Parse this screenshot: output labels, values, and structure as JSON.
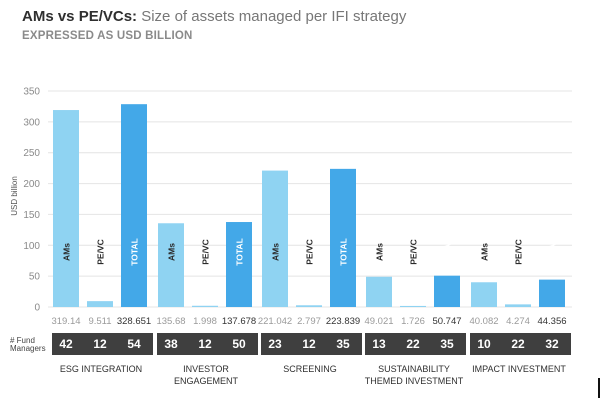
{
  "header": {
    "title_bold": "AMs vs PE/VCs:",
    "title_rest": "Size of assets managed per IFI strategy",
    "subtitle": "EXPRESSED AS USD BILLION"
  },
  "colors": {
    "ams": "#8fd3f2",
    "pevc": "#8fd3f2",
    "total": "#43a8e8",
    "fund_box": "#3f3f3f",
    "grid": "#e4e4e4",
    "axis_text": "#8a8a8a",
    "value_text": "#9a9a9a"
  },
  "chart_data": {
    "type": "bar",
    "title": "AMs vs PE/VCs: Size of assets managed per IFI strategy",
    "subtitle": "EXPRESSED AS USD BILLION",
    "ylabel": "USD billion",
    "xlabel": "",
    "ylim": [
      0,
      350
    ],
    "yticks": [
      0,
      50,
      100,
      150,
      200,
      250,
      300,
      350
    ],
    "grid": true,
    "series_labels": [
      "AMs",
      "PE/VC",
      "TOTAL"
    ],
    "fund_managers_label": "# Fund Managers",
    "categories": [
      {
        "name": "ESG INTEGRATION",
        "values": [
          319.14,
          9.511,
          328.651
        ],
        "value_labels": [
          "319.14",
          "9.511",
          "328.651"
        ],
        "fund_managers": [
          "42",
          "12",
          "54"
        ]
      },
      {
        "name": "INVESTOR ENGAGEMENT",
        "values": [
          135.68,
          1.998,
          137.678
        ],
        "value_labels": [
          "135.68",
          "1.998",
          "137.678"
        ],
        "fund_managers": [
          "38",
          "12",
          "50"
        ]
      },
      {
        "name": "SCREENING",
        "values": [
          221.042,
          2.797,
          223.839
        ],
        "value_labels": [
          "221.042",
          "2.797",
          "223.839"
        ],
        "fund_managers": [
          "23",
          "12",
          "35"
        ]
      },
      {
        "name": "SUSTAINABILITY THEMED INVESTMENT",
        "values": [
          49.021,
          1.726,
          50.747
        ],
        "value_labels": [
          "49.021",
          "1.726",
          "50.747"
        ],
        "fund_managers": [
          "13",
          "22",
          "35"
        ]
      },
      {
        "name": "IMPACT INVESTMENT",
        "values": [
          40.082,
          4.274,
          44.356
        ],
        "value_labels": [
          "40.082",
          "4.274",
          "44.356"
        ],
        "fund_managers": [
          "10",
          "22",
          "32"
        ]
      }
    ]
  }
}
